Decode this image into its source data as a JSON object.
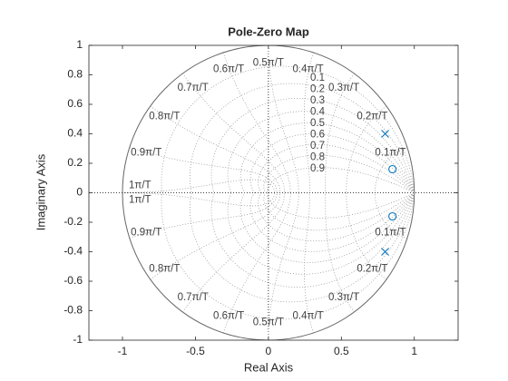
{
  "chart_data": {
    "type": "pzmap",
    "title": "Pole-Zero Map",
    "xlabel": "Real Axis",
    "ylabel": "Imaginary Axis",
    "xlim": [
      -1.23,
      1.3
    ],
    "ylim": [
      -1,
      1
    ],
    "xticks": [
      -1,
      -0.5,
      0,
      0.5,
      1
    ],
    "yticks": [
      -1,
      -0.8,
      -0.6,
      -0.4,
      -0.2,
      0,
      0.2,
      0.4,
      0.6,
      0.8,
      1
    ],
    "series": [
      {
        "marker": "x",
        "color": "#0072BD",
        "x": [
          0.8,
          0.8
        ],
        "y": [
          0.4,
          -0.4
        ]
      },
      {
        "marker": "o",
        "color": "#0072BD",
        "x": [
          0.85,
          0.85
        ],
        "y": [
          0.16,
          -0.16
        ]
      }
    ],
    "zgrid": {
      "zeta": [
        0.1,
        0.2,
        0.3,
        0.4,
        0.5,
        0.6,
        0.7,
        0.8,
        0.9
      ],
      "wn": [
        {
          "value": 0.1,
          "label": "0.1π/T"
        },
        {
          "value": 0.2,
          "label": "0.2π/T"
        },
        {
          "value": 0.3,
          "label": "0.3π/T"
        },
        {
          "value": 0.4,
          "label": "0.4π/T"
        },
        {
          "value": 0.5,
          "label": "0.5π/T"
        },
        {
          "value": 0.6,
          "label": "0.6π/T"
        },
        {
          "value": 0.7,
          "label": "0.7π/T"
        },
        {
          "value": 0.8,
          "label": "0.8π/T"
        },
        {
          "value": 0.9,
          "label": "0.9π/T"
        },
        {
          "value": 1,
          "label": "1π/T"
        }
      ]
    }
  }
}
